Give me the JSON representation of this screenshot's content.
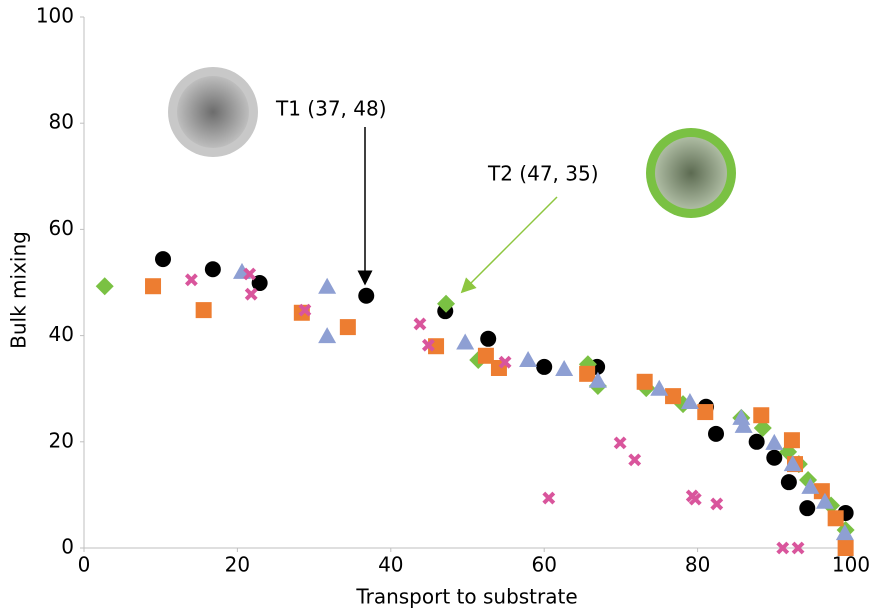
{
  "chart_data": {
    "type": "scatter",
    "xlabel": "Transport to substrate",
    "ylabel": "Bulk mixing",
    "xlim": [
      0,
      100
    ],
    "ylim": [
      0,
      100
    ],
    "xticks": [
      0,
      20,
      40,
      60,
      80,
      100
    ],
    "yticks": [
      0,
      20,
      40,
      60,
      80,
      100
    ],
    "grid": false,
    "annotations": [
      {
        "text": "T1 (37, 48)",
        "color": "#000000"
      },
      {
        "text": "T2 (47, 35)",
        "color": "#8dc63f"
      }
    ],
    "series": [
      {
        "marker": "circle",
        "color": "#000000",
        "x": [
          10.3,
          16.8,
          22.9,
          36.8,
          47.1,
          52.7,
          60.0,
          66.9,
          81.1,
          82.4,
          87.7,
          90.0,
          91.9,
          94.3,
          99.3
        ],
        "values": [
          54.4,
          52.5,
          49.9,
          47.5,
          44.6,
          39.4,
          34.1,
          34.1,
          26.6,
          21.5,
          20.0,
          17.0,
          12.4,
          7.5,
          6.6
        ]
      },
      {
        "marker": "diamond",
        "color": "#7ac143",
        "x": [
          2.7,
          47.2,
          51.4,
          65.7,
          67.0,
          73.3,
          78.1,
          85.7,
          88.5,
          91.8,
          93.2,
          94.4,
          97.4,
          99.3
        ],
        "values": [
          49.3,
          46.0,
          35.4,
          34.6,
          30.5,
          30.1,
          27.1,
          24.5,
          22.6,
          18.1,
          15.8,
          12.8,
          8.0,
          3.4
        ]
      },
      {
        "marker": "square",
        "color": "#ed7d31",
        "x": [
          9.0,
          15.6,
          28.4,
          34.4,
          45.9,
          52.4,
          54.1,
          65.6,
          73.1,
          76.8,
          81.0,
          88.3,
          92.3,
          92.7,
          96.2,
          98.0,
          99.3
        ],
        "values": [
          49.3,
          44.8,
          44.3,
          41.6,
          38.0,
          36.2,
          33.9,
          32.8,
          31.3,
          28.6,
          25.6,
          25.0,
          20.3,
          15.8,
          10.7,
          5.6,
          0
        ]
      },
      {
        "marker": "triangle",
        "color": "#8e9fd3",
        "x": [
          20.6,
          31.7,
          31.7,
          49.7,
          57.9,
          62.6,
          67.0,
          75.0,
          79.0,
          85.7,
          86.0,
          90.0,
          92.4,
          94.7,
          96.6,
          99.2
        ],
        "values": [
          52.0,
          49.2,
          39.9,
          38.7,
          35.4,
          33.7,
          31.5,
          30.0,
          27.5,
          24.5,
          23.0,
          19.8,
          15.8,
          11.5,
          8.7,
          2.8
        ]
      },
      {
        "marker": "cross",
        "color": "#d9559c",
        "x": [
          14.0,
          21.6,
          21.8,
          28.8,
          43.8,
          44.9,
          54.9,
          60.6,
          69.9,
          71.8,
          79.3,
          79.7,
          82.5,
          91.1,
          93.1
        ],
        "values": [
          50.5,
          51.6,
          47.8,
          44.8,
          42.2,
          38.2,
          35.0,
          9.4,
          19.8,
          16.6,
          9.8,
          9.2,
          8.3,
          0,
          0
        ]
      }
    ]
  }
}
